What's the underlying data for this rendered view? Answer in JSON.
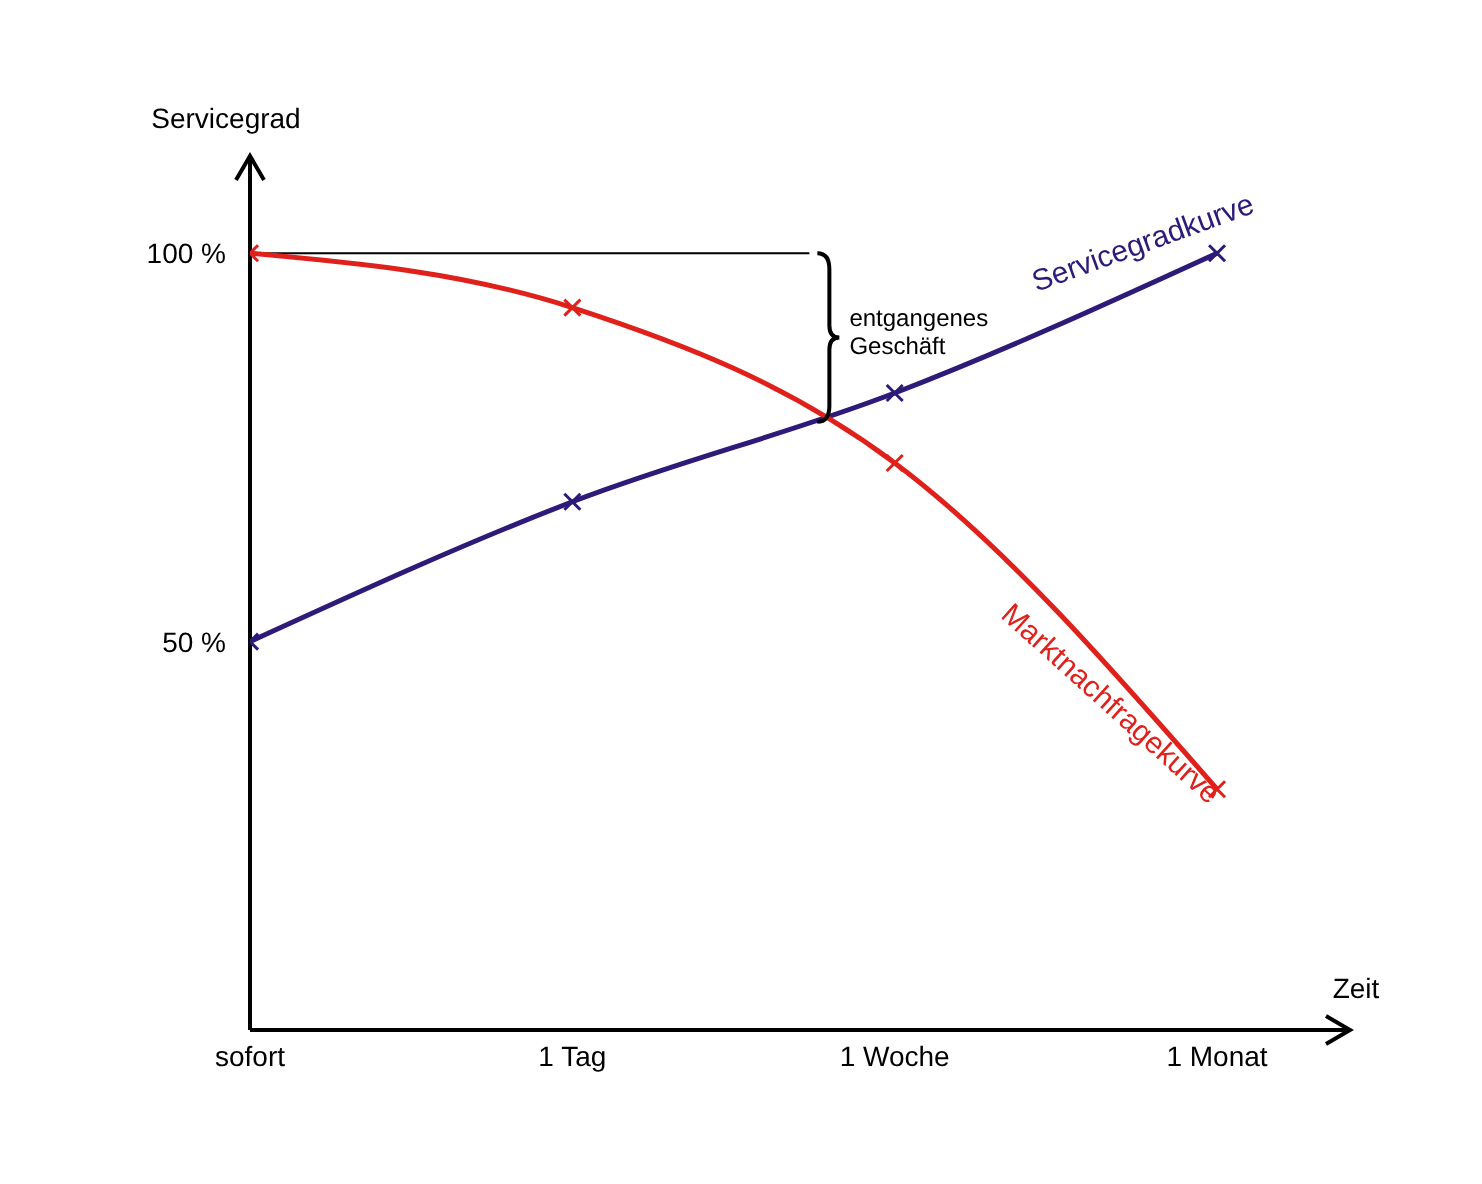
{
  "chart_data": {
    "type": "line",
    "xlabel": "Zeit",
    "ylabel": "Servicegrad",
    "categories": [
      "sofort",
      "1 Tag",
      "1 Woche",
      "1 Monat"
    ],
    "series": [
      {
        "name": "Servicegradkurve",
        "color": "#2e1a78",
        "values": [
          50,
          68,
          82,
          100
        ]
      },
      {
        "name": "Marktnachfragekurve",
        "color": "#e0201b",
        "values": [
          100,
          93,
          73,
          31
        ]
      }
    ],
    "ylim": [
      0,
      112
    ],
    "yticks": [
      {
        "value": 50,
        "label": "50 %"
      },
      {
        "value": 100,
        "label": "100 %"
      }
    ],
    "ref_lines": [
      {
        "axis": "y",
        "value": 100,
        "color": "#000000"
      }
    ],
    "annotations": [
      "entgangenes Geschäft"
    ],
    "marker": "cross",
    "grid": false,
    "legend": false
  }
}
